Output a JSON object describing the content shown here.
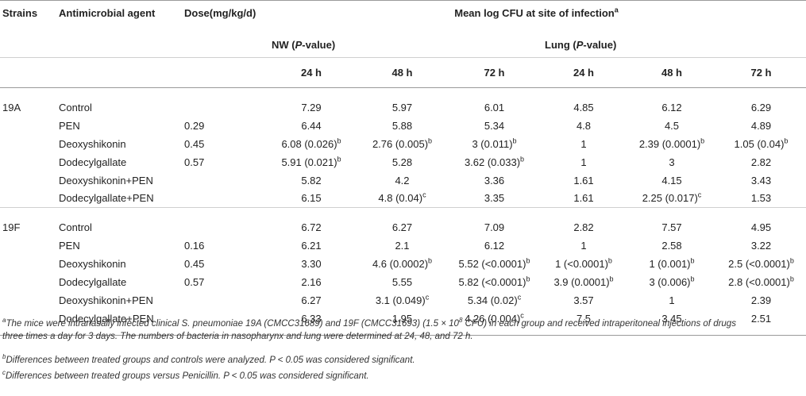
{
  "header": {
    "strains": "Strains",
    "agent": "Antimicrobial agent",
    "dose": "Dose(mg/kg/d)",
    "mean_label": "Mean log CFU at site of infection",
    "mean_sup": "a",
    "nw_label": "NW (",
    "nw_p": "P",
    "nw_rest": "-value)",
    "lung_label": "Lung (",
    "lung_p": "P",
    "lung_rest": "-value)",
    "times": [
      "24 h",
      "48 h",
      "72 h",
      "24 h",
      "48 h",
      "72 h"
    ]
  },
  "groups": [
    {
      "strain": "19A",
      "rows": [
        {
          "agent": "Control",
          "dose": "",
          "cells": [
            [
              "7.29",
              ""
            ],
            [
              "5.97",
              ""
            ],
            [
              "6.01",
              ""
            ],
            [
              "4.85",
              ""
            ],
            [
              "6.12",
              ""
            ],
            [
              "6.29",
              ""
            ]
          ]
        },
        {
          "agent": "PEN",
          "dose": "0.29",
          "cells": [
            [
              "6.44",
              ""
            ],
            [
              "5.88",
              ""
            ],
            [
              "5.34",
              ""
            ],
            [
              "4.8",
              ""
            ],
            [
              "4.5",
              ""
            ],
            [
              "4.89",
              ""
            ]
          ]
        },
        {
          "agent": "Deoxyshikonin",
          "dose": "0.45",
          "cells": [
            [
              "6.08 (0.026)",
              "b"
            ],
            [
              "2.76 (0.005)",
              "b"
            ],
            [
              "3 (0.011)",
              "b"
            ],
            [
              "1",
              ""
            ],
            [
              "2.39 (0.0001)",
              "b"
            ],
            [
              "1.05 (0.04)",
              "b"
            ]
          ]
        },
        {
          "agent": "Dodecylgallate",
          "dose": "0.57",
          "cells": [
            [
              "5.91 (0.021)",
              "b"
            ],
            [
              "5.28",
              ""
            ],
            [
              "3.62 (0.033)",
              "b"
            ],
            [
              "1",
              ""
            ],
            [
              "3",
              ""
            ],
            [
              "2.82",
              ""
            ]
          ]
        },
        {
          "agent": "Deoxyshikonin+PEN",
          "dose": "",
          "cells": [
            [
              "5.82",
              ""
            ],
            [
              "4.2",
              ""
            ],
            [
              "3.36",
              ""
            ],
            [
              "1.61",
              ""
            ],
            [
              "4.15",
              ""
            ],
            [
              "3.43",
              ""
            ]
          ]
        },
        {
          "agent": "Dodecylgallate+PEN",
          "dose": "",
          "cells": [
            [
              "6.15",
              ""
            ],
            [
              "4.8 (0.04)",
              "c"
            ],
            [
              "3.35",
              ""
            ],
            [
              "1.61",
              ""
            ],
            [
              "2.25 (0.017)",
              "c"
            ],
            [
              "1.53",
              ""
            ]
          ]
        }
      ]
    },
    {
      "strain": "19F",
      "rows": [
        {
          "agent": "Control",
          "dose": "",
          "cells": [
            [
              "6.72",
              ""
            ],
            [
              "6.27",
              ""
            ],
            [
              "7.09",
              ""
            ],
            [
              "2.82",
              ""
            ],
            [
              "7.57",
              ""
            ],
            [
              "4.95",
              ""
            ]
          ]
        },
        {
          "agent": "PEN",
          "dose": "0.16",
          "cells": [
            [
              "6.21",
              ""
            ],
            [
              "2.1",
              ""
            ],
            [
              "6.12",
              ""
            ],
            [
              "1",
              ""
            ],
            [
              "2.58",
              ""
            ],
            [
              "3.22",
              ""
            ]
          ]
        },
        {
          "agent": "Deoxyshikonin",
          "dose": "0.45",
          "cells": [
            [
              "3.30",
              ""
            ],
            [
              "4.6 (0.0002)",
              "b"
            ],
            [
              "5.52 (<0.0001)",
              "b"
            ],
            [
              "1 (<0.0001)",
              "b"
            ],
            [
              "1 (0.001)",
              "b"
            ],
            [
              "2.5 (<0.0001)",
              "b"
            ]
          ]
        },
        {
          "agent": "Dodecylgallate",
          "dose": "0.57",
          "cells": [
            [
              "2.16",
              ""
            ],
            [
              "5.55",
              ""
            ],
            [
              "5.82 (<0.0001)",
              "b"
            ],
            [
              "3.9 (0.0001)",
              "b"
            ],
            [
              "3 (0.006)",
              "b"
            ],
            [
              "2.8 (<0.0001)",
              "b"
            ]
          ]
        },
        {
          "agent": "Deoxyshikonin+PEN",
          "dose": "",
          "cells": [
            [
              "6.27",
              ""
            ],
            [
              "3.1 (0.049)",
              "c"
            ],
            [
              "5.34 (0.02)",
              "c"
            ],
            [
              "3.57",
              ""
            ],
            [
              "1",
              ""
            ],
            [
              "2.39",
              ""
            ]
          ]
        },
        {
          "agent": "Dodecylgallate+PEN",
          "dose": "",
          "cells": [
            [
              "6.33",
              ""
            ],
            [
              "1.95",
              ""
            ],
            [
              "4.26 (0.004)",
              "c"
            ],
            [
              "7.5",
              ""
            ],
            [
              "3.45",
              ""
            ],
            [
              "2.51",
              ""
            ]
          ]
        }
      ]
    }
  ],
  "footnotes": {
    "a_mark": "a",
    "a_text_1": "The mice were intranasally infected clinical S. pneumoniae 19A (CMCC31689) and 19F (CMCC31693) (1.5 × 10",
    "a_exp": "8",
    "a_text_2": " CFU) in each group and received intraperitoneal injections of drugs",
    "a_text_3": "three times a day for 3 days. The numbers of bacteria in nasopharynx and lung were determined at 24, 48, and 72 h.",
    "b_mark": "b",
    "b_text": "Differences between treated groups and controls were analyzed. P < 0.05 was considered significant.",
    "c_mark": "c",
    "c_text": "Differences between treated groups versus Penicillin. P < 0.05 was considered significant."
  }
}
